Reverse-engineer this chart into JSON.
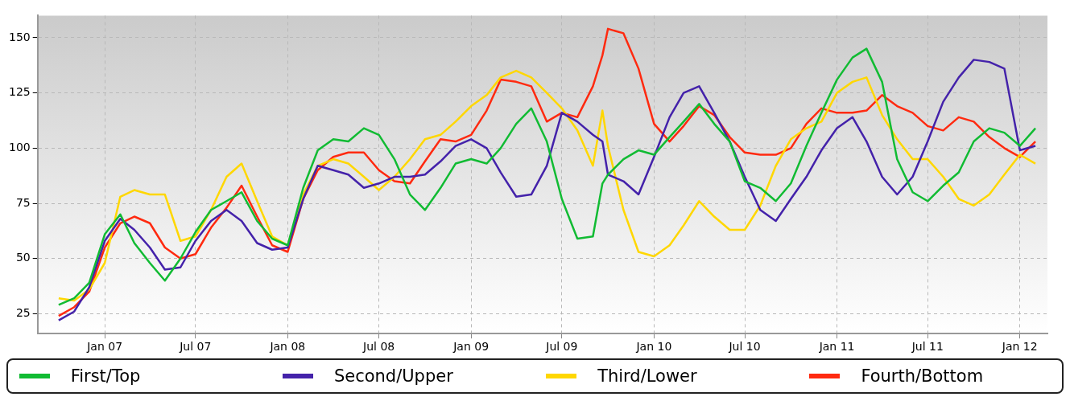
{
  "chart_data": {
    "type": "line",
    "x": [
      "2006-10",
      "2006-11",
      "2006-12",
      "2007-01",
      "2007-02",
      "2007-03",
      "2007-04",
      "2007-05",
      "2007-06",
      "2007-07",
      "2007-08",
      "2007-09",
      "2007-10",
      "2007-11",
      "2007-12",
      "2008-01",
      "2008-02",
      "2008-03",
      "2008-04",
      "2008-05",
      "2008-06",
      "2008-07",
      "2008-08",
      "2008-09",
      "2008-10",
      "2008-11",
      "2008-12",
      "2009-01",
      "2009-02",
      "2009-03",
      "2009-04",
      "2009-05",
      "2009-06",
      "2009-07",
      "2009-08",
      "2009-09",
      "2009-09-20",
      "2009-10",
      "2009-11",
      "2009-12",
      "2010-01",
      "2010-02",
      "2010-03",
      "2010-04",
      "2010-05",
      "2010-06",
      "2010-07",
      "2010-08",
      "2010-09",
      "2010-10",
      "2010-11",
      "2010-12",
      "2011-01",
      "2011-02",
      "2011-03",
      "2011-04",
      "2011-05",
      "2011-06",
      "2011-07",
      "2011-08",
      "2011-09",
      "2011-10",
      "2011-11",
      "2011-12",
      "2012-01",
      "2012-02"
    ],
    "series": [
      {
        "name": "First/Top",
        "color": "#11bb33",
        "values": [
          29,
          32,
          39,
          61,
          70,
          57,
          48,
          40,
          50,
          62,
          72,
          76,
          80,
          67,
          59,
          56,
          82,
          99,
          104,
          103,
          109,
          106,
          95,
          79,
          72,
          82,
          93,
          95,
          93,
          100,
          111,
          118,
          103,
          77,
          59,
          60,
          84,
          88,
          95,
          99,
          97,
          105,
          112,
          120,
          111,
          103,
          85,
          82,
          76,
          84,
          101,
          116,
          131,
          141,
          145,
          130,
          95,
          80,
          76,
          83,
          89,
          103,
          109,
          107,
          101,
          109
        ]
      },
      {
        "name": "Second/Upper",
        "color": "#4422aa",
        "values": [
          22,
          26,
          37,
          58,
          68,
          63,
          55,
          45,
          46,
          58,
          67,
          72,
          67,
          57,
          54,
          55,
          77,
          92,
          90,
          88,
          82,
          84,
          87,
          87,
          88,
          94,
          101,
          104,
          100,
          89,
          78,
          79,
          92,
          116,
          112,
          106,
          103,
          88,
          85,
          79,
          96,
          114,
          125,
          128,
          116,
          103,
          87,
          72,
          67,
          77,
          87,
          99,
          109,
          114,
          103,
          87,
          79,
          87,
          103,
          121,
          132,
          140,
          139,
          136,
          99,
          101
        ]
      },
      {
        "name": "Third/Lower",
        "color": "#ffd700",
        "values": [
          32,
          31,
          36,
          48,
          78,
          81,
          79,
          79,
          58,
          60,
          72,
          87,
          93,
          76,
          60,
          56,
          79,
          92,
          95,
          93,
          87,
          81,
          87,
          95,
          104,
          106,
          112,
          119,
          124,
          132,
          135,
          132,
          125,
          118,
          108,
          92,
          117,
          101,
          72,
          53,
          51,
          56,
          65,
          76,
          69,
          63,
          63,
          74,
          92,
          104,
          109,
          112,
          125,
          130,
          132,
          115,
          104,
          95,
          95,
          87,
          77,
          74,
          79,
          88,
          97,
          93
        ]
      },
      {
        "name": "Fourth/Bottom",
        "color": "#ff2a10",
        "values": [
          24,
          28,
          35,
          55,
          66,
          69,
          66,
          55,
          50,
          52,
          64,
          73,
          83,
          69,
          56,
          53,
          77,
          90,
          96,
          98,
          98,
          90,
          85,
          84,
          94,
          104,
          103,
          106,
          117,
          131,
          130,
          128,
          112,
          116,
          114,
          128,
          142,
          154,
          152,
          136,
          111,
          103,
          110,
          119,
          115,
          105,
          98,
          97,
          97,
          100,
          111,
          118,
          116,
          116,
          117,
          124,
          119,
          116,
          110,
          108,
          114,
          112,
          105,
          100,
          96,
          103
        ]
      }
    ],
    "xlim": [
      "2006-08-20",
      "2012-02-25"
    ],
    "xticks": [
      {
        "value": "2007-01",
        "label": "Jan 07"
      },
      {
        "value": "2007-07",
        "label": "Jul 07"
      },
      {
        "value": "2008-01",
        "label": "Jan 08"
      },
      {
        "value": "2008-07",
        "label": "Jul 08"
      },
      {
        "value": "2009-01",
        "label": "Jan 09"
      },
      {
        "value": "2009-07",
        "label": "Jul 09"
      },
      {
        "value": "2010-01",
        "label": "Jan 10"
      },
      {
        "value": "2010-07",
        "label": "Jul 10"
      },
      {
        "value": "2011-01",
        "label": "Jan 11"
      },
      {
        "value": "2011-07",
        "label": "Jul 11"
      },
      {
        "value": "2012-01",
        "label": "Jan 12"
      }
    ],
    "ylim": [
      16,
      160
    ],
    "yticks": [
      25,
      50,
      75,
      100,
      125,
      150
    ],
    "grid": true,
    "legend": "bottom",
    "marker": "none",
    "line_style": "solid"
  }
}
